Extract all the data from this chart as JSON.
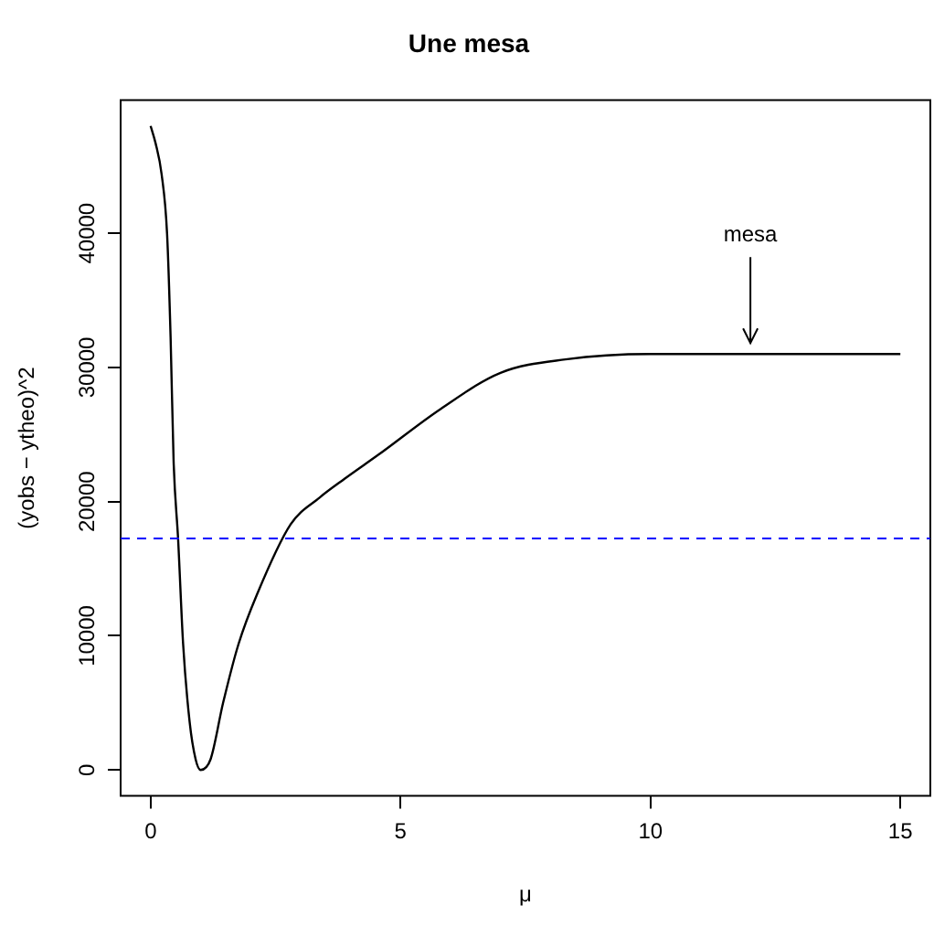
{
  "chart_data": {
    "type": "line",
    "title": "Une mesa",
    "xlabel": "μ",
    "ylabel": "(yobs − ytheo)^2",
    "x": [
      0,
      0.1,
      0.22,
      0.33,
      0.4,
      0.46,
      0.55,
      0.65,
      0.78,
      0.9,
      1.0,
      1.2,
      1.45,
      1.76,
      2.13,
      2.8,
      3.38,
      3.88,
      4.56,
      5.8,
      7.0,
      8.3,
      10.0,
      12.0,
      15.0
    ],
    "series": [
      {
        "color": "#000000",
        "values": [
          48000,
          46700,
          44400,
          39900,
          32200,
          23000,
          17200,
          9400,
          3600,
          800,
          0,
          800,
          5000,
          9400,
          13100,
          18300,
          20300,
          21700,
          23500,
          26900,
          29600,
          30600,
          31000,
          31000,
          31000
        ]
      }
    ],
    "xlim": [
      -0.6,
      15.6
    ],
    "ylim": [
      -1920,
      49920
    ],
    "xticks": [
      0,
      5,
      10,
      15
    ],
    "yticks": [
      0,
      10000,
      20000,
      30000,
      40000
    ],
    "ref_lines": [
      {
        "axis": "y",
        "value": 17250,
        "color": "#0000ff",
        "line_style": "dashed"
      }
    ],
    "annotations": [
      {
        "text": "mesa",
        "x": 12,
        "y": 31000
      }
    ],
    "grid": false,
    "legend": false,
    "marker": "none",
    "line_style": "solid"
  }
}
